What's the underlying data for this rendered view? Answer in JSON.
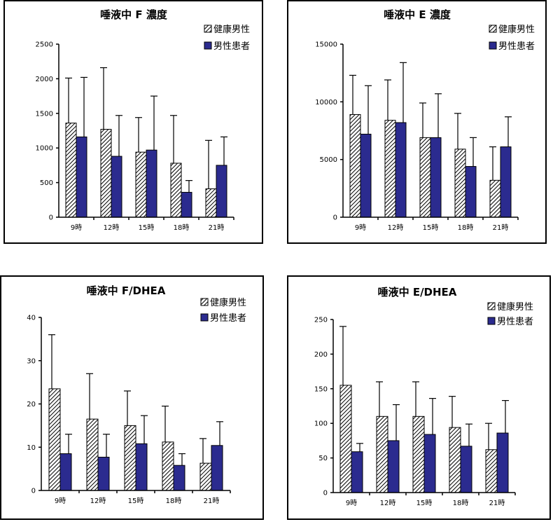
{
  "colors": {
    "healthy_fill": "hatch-white-black",
    "patient_fill": "#2b2b8f"
  },
  "chart_data": [
    {
      "type": "bar",
      "title": "唾液中 F 濃度",
      "categories": [
        "9時",
        "12時",
        "15時",
        "18時",
        "21時"
      ],
      "ylim": [
        0,
        2500
      ],
      "yticks": [
        0,
        500,
        1000,
        1500,
        2000,
        2500
      ],
      "series": [
        {
          "name": "健康男性",
          "values": [
            1360,
            1270,
            940,
            780,
            410
          ],
          "error": [
            650,
            890,
            500,
            690,
            700
          ]
        },
        {
          "name": "男性患者",
          "values": [
            1160,
            880,
            970,
            360,
            750
          ],
          "error": [
            860,
            590,
            780,
            170,
            410
          ]
        }
      ],
      "legend": "top-right",
      "grid": false
    },
    {
      "type": "bar",
      "title": "唾液中 E 濃度",
      "categories": [
        "9時",
        "12時",
        "15時",
        "18時",
        "21時"
      ],
      "ylim": [
        0,
        15000
      ],
      "yticks": [
        0,
        5000,
        10000,
        15000
      ],
      "series": [
        {
          "name": "健康男性",
          "values": [
            8900,
            8400,
            6900,
            5900,
            3200
          ],
          "error": [
            3400,
            3500,
            3000,
            3100,
            2900
          ]
        },
        {
          "name": "男性患者",
          "values": [
            7200,
            8200,
            6900,
            4400,
            6100
          ],
          "error": [
            4200,
            5200,
            3800,
            2500,
            2600
          ]
        }
      ],
      "legend": "top-right",
      "grid": false
    },
    {
      "type": "bar",
      "title": "唾液中 F/DHEA",
      "categories": [
        "9時",
        "12時",
        "15時",
        "18時",
        "21時"
      ],
      "ylim": [
        0,
        40
      ],
      "yticks": [
        0,
        10,
        20,
        30,
        40
      ],
      "series": [
        {
          "name": "健康男性",
          "values": [
            23.5,
            16.5,
            15.0,
            11.2,
            6.3
          ],
          "error": [
            12.5,
            10.5,
            8.0,
            8.3,
            5.7
          ]
        },
        {
          "name": "男性患者",
          "values": [
            8.5,
            7.7,
            10.8,
            5.8,
            10.4
          ],
          "error": [
            4.5,
            5.3,
            6.5,
            2.7,
            5.5
          ]
        }
      ],
      "legend": "top-right",
      "grid": false
    },
    {
      "type": "bar",
      "title": "唾液中 E/DHEA",
      "categories": [
        "9時",
        "12時",
        "15時",
        "18時",
        "21時"
      ],
      "ylim": [
        0,
        250
      ],
      "yticks": [
        0,
        50,
        100,
        150,
        200,
        250
      ],
      "series": [
        {
          "name": "健康男性",
          "values": [
            155,
            110,
            110,
            94,
            62
          ],
          "error": [
            85,
            50,
            50,
            45,
            38
          ]
        },
        {
          "name": "男性患者",
          "values": [
            59,
            75,
            84,
            67,
            86
          ],
          "error": [
            12,
            52,
            52,
            32,
            47
          ]
        }
      ],
      "legend": "top-right",
      "grid": false
    }
  ]
}
